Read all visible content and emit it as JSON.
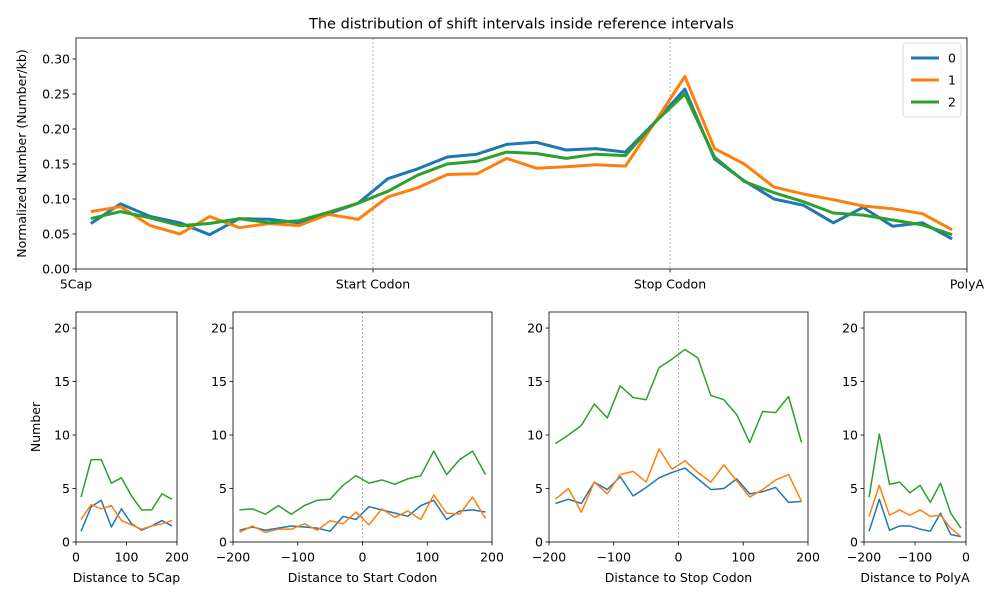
{
  "colors": {
    "s0": "#1f77b4",
    "s1": "#ff7f0e",
    "s2": "#2ca02c"
  },
  "chart_data": [
    {
      "type": "line",
      "title": "The distribution of shift intervals inside reference intervals",
      "ylabel": "Normalized Number (Number/kb)",
      "xlabel": "",
      "xlim": [
        0,
        30
      ],
      "ylim": [
        0,
        0.33
      ],
      "yticks": [
        0.0,
        0.05,
        0.1,
        0.15,
        0.2,
        0.25,
        0.3
      ],
      "ytick_labels": [
        "0.00",
        "0.05",
        "0.10",
        "0.15",
        "0.20",
        "0.25",
        "0.30"
      ],
      "xticks": [
        0,
        10,
        20,
        30
      ],
      "xtick_labels": [
        "5Cap",
        "Start Codon",
        "Stop Codon",
        "PolyA"
      ],
      "vlines": [
        10,
        20
      ],
      "legend_position": "top-right",
      "x": [
        0.5,
        1.5,
        2.5,
        3.5,
        4.5,
        5.5,
        6.5,
        7.5,
        8.5,
        9.5,
        10.5,
        11.5,
        12.5,
        13.5,
        14.5,
        15.5,
        16.5,
        17.5,
        18.5,
        19.5,
        20.5,
        21.5,
        22.5,
        23.5,
        24.5,
        25.5,
        26.5,
        27.5,
        28.5,
        29.5
      ],
      "series": [
        {
          "name": "0",
          "values": [
            0.065,
            0.093,
            0.075,
            0.066,
            0.049,
            0.072,
            0.071,
            0.066,
            0.079,
            0.094,
            0.129,
            0.143,
            0.16,
            0.164,
            0.178,
            0.181,
            0.17,
            0.172,
            0.167,
            0.21,
            0.257,
            0.157,
            0.126,
            0.1,
            0.091,
            0.066,
            0.088,
            0.061,
            0.066,
            0.043
          ]
        },
        {
          "name": "1",
          "values": [
            0.082,
            0.089,
            0.062,
            0.05,
            0.075,
            0.059,
            0.065,
            0.062,
            0.078,
            0.071,
            0.103,
            0.116,
            0.135,
            0.136,
            0.158,
            0.144,
            0.146,
            0.149,
            0.147,
            0.21,
            0.275,
            0.172,
            0.15,
            0.117,
            0.107,
            0.099,
            0.09,
            0.086,
            0.079,
            0.056
          ]
        },
        {
          "name": "2",
          "values": [
            0.072,
            0.082,
            0.073,
            0.062,
            0.065,
            0.072,
            0.066,
            0.069,
            0.081,
            0.094,
            0.111,
            0.134,
            0.15,
            0.154,
            0.167,
            0.165,
            0.158,
            0.164,
            0.162,
            0.21,
            0.25,
            0.16,
            0.125,
            0.109,
            0.096,
            0.08,
            0.077,
            0.07,
            0.063,
            0.049
          ]
        }
      ]
    },
    {
      "type": "line",
      "xlabel": "Distance to 5Cap",
      "ylabel": "Number",
      "xlim": [
        0,
        200
      ],
      "ylim": [
        0,
        21.5
      ],
      "xticks": [
        0,
        100,
        200
      ],
      "yticks": [
        0,
        5,
        10,
        15,
        20
      ],
      "x": [
        10,
        30,
        50,
        70,
        90,
        110,
        130,
        150,
        170,
        190
      ],
      "series": [
        {
          "values": [
            1.0,
            3.3,
            3.9,
            1.4,
            3.1,
            1.7,
            1.1,
            1.5,
            2.0,
            1.5
          ]
        },
        {
          "values": [
            2.1,
            3.5,
            3.1,
            3.4,
            2.0,
            1.6,
            1.2,
            1.5,
            1.7,
            2.0
          ]
        },
        {
          "values": [
            4.2,
            7.7,
            7.7,
            5.5,
            6.0,
            4.3,
            3.0,
            3.0,
            4.5,
            4.0
          ]
        }
      ]
    },
    {
      "type": "line",
      "xlabel": "Distance to Start Codon",
      "xlim": [
        -200,
        200
      ],
      "ylim": [
        0,
        21.5
      ],
      "xticks": [
        -200,
        -100,
        0,
        100,
        200
      ],
      "yticks": [
        0,
        5,
        10,
        15,
        20
      ],
      "vline": 0,
      "x": [
        -190,
        -170,
        -150,
        -130,
        -110,
        -90,
        -70,
        -50,
        -30,
        -10,
        10,
        30,
        50,
        70,
        90,
        110,
        130,
        150,
        170,
        190
      ],
      "series": [
        {
          "values": [
            1.1,
            1.4,
            1.1,
            1.3,
            1.5,
            1.4,
            1.3,
            1.0,
            2.4,
            2.1,
            3.3,
            3.0,
            2.7,
            2.4,
            3.4,
            3.9,
            2.1,
            2.9,
            3.0,
            2.8
          ]
        },
        {
          "values": [
            0.9,
            1.5,
            0.9,
            1.2,
            1.2,
            1.7,
            1.1,
            2.0,
            1.7,
            2.8,
            1.6,
            3.1,
            2.3,
            2.9,
            2.1,
            4.4,
            2.7,
            2.6,
            4.2,
            2.2
          ]
        },
        {
          "values": [
            3.0,
            3.1,
            2.6,
            3.4,
            2.6,
            3.4,
            3.9,
            4.0,
            5.3,
            6.2,
            5.5,
            5.8,
            5.4,
            5.9,
            6.2,
            8.5,
            6.3,
            7.7,
            8.5,
            6.3
          ]
        }
      ]
    },
    {
      "type": "line",
      "xlabel": "Distance to Stop Codon",
      "xlim": [
        -200,
        200
      ],
      "ylim": [
        0,
        21.5
      ],
      "xticks": [
        -200,
        -100,
        0,
        100,
        200
      ],
      "yticks": [
        0,
        5,
        10,
        15,
        20
      ],
      "vline": 0,
      "x": [
        -190,
        -170,
        -150,
        -130,
        -110,
        -90,
        -70,
        -50,
        -30,
        -10,
        10,
        30,
        50,
        70,
        90,
        110,
        130,
        150,
        170,
        190
      ],
      "series": [
        {
          "values": [
            3.6,
            4.0,
            3.6,
            5.6,
            4.9,
            6.1,
            4.3,
            5.1,
            6.0,
            6.5,
            6.9,
            5.9,
            4.9,
            5.0,
            5.9,
            4.5,
            4.7,
            5.1,
            3.7,
            3.8
          ]
        },
        {
          "values": [
            4.0,
            5.0,
            2.8,
            5.6,
            4.5,
            6.3,
            6.6,
            5.6,
            8.7,
            6.8,
            7.6,
            6.5,
            5.6,
            7.2,
            5.7,
            4.2,
            4.9,
            5.8,
            6.3,
            3.8
          ]
        },
        {
          "values": [
            9.2,
            10.0,
            10.9,
            12.9,
            11.6,
            14.6,
            13.5,
            13.3,
            16.3,
            17.1,
            18.0,
            17.2,
            13.7,
            13.3,
            11.9,
            9.3,
            12.2,
            12.1,
            13.6,
            9.3
          ]
        }
      ]
    },
    {
      "type": "line",
      "xlabel": "Distance to PolyA",
      "xlim": [
        -200,
        0
      ],
      "ylim": [
        0,
        21.5
      ],
      "xticks": [
        -200,
        -100,
        0
      ],
      "yticks": [
        0,
        5,
        10,
        15,
        20
      ],
      "x": [
        -190,
        -170,
        -150,
        -130,
        -110,
        -90,
        -70,
        -50,
        -30,
        -10
      ],
      "series": [
        {
          "values": [
            1.0,
            4.0,
            1.1,
            1.5,
            1.5,
            1.2,
            1.0,
            2.7,
            0.7,
            0.5
          ]
        },
        {
          "values": [
            2.4,
            5.3,
            2.5,
            3.0,
            2.5,
            3.0,
            2.4,
            2.5,
            1.3,
            0.5
          ]
        },
        {
          "values": [
            4.2,
            10.1,
            5.4,
            5.6,
            4.6,
            5.3,
            3.7,
            5.5,
            2.7,
            1.3
          ]
        }
      ]
    }
  ]
}
